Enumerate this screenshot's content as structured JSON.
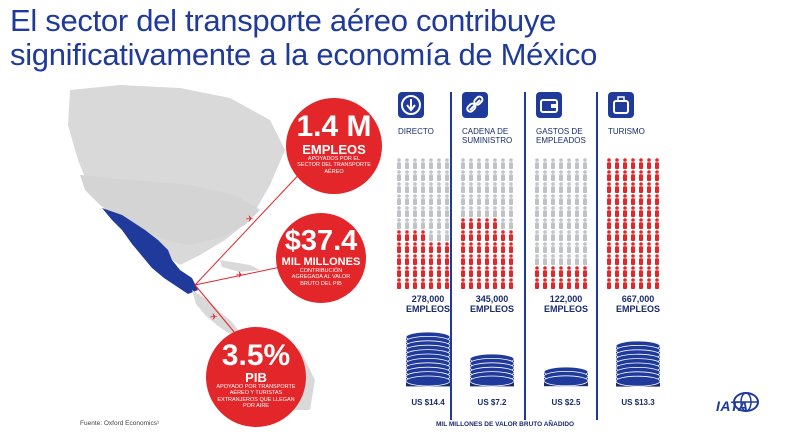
{
  "title_line1": "El sector del transporte aéreo contribuye",
  "title_line2": "significativamente a la economía de México",
  "circles": [
    {
      "big": "1.4 M",
      "mid": "EMPLEOS",
      "small": "APOYADOS POR EL SECTOR DEL TRANSPORTE AÉREO"
    },
    {
      "big": "$37.4",
      "mid": "MIL MILLONES",
      "small": "CONTRIBUCIÓN AGREGADA AL VALOR BRUTO DEL PIB"
    },
    {
      "big": "3.5%",
      "mid": "PIB",
      "small": "APOYADO POR TRANSPORTE AÉREO Y TURISTAS EXTRANJEROS QUE LLEGAN POR AIRE"
    }
  ],
  "columns": [
    {
      "icon": "arrow-down-icon",
      "label": "DIRECTO",
      "count": "278,000",
      "unit": "EMPLEOS",
      "gva": "US $14.4",
      "red_fraction": 0.42,
      "coins": 11
    },
    {
      "icon": "link-icon",
      "label": "CADENA DE SUMINISTRO",
      "count": "345,000",
      "unit": "EMPLEOS",
      "gva": "US $7.2",
      "red_fraction": 0.52,
      "coins": 6
    },
    {
      "icon": "wallet-icon",
      "label": "GASTOS DE EMPLEADOS",
      "count": "122,000",
      "unit": "EMPLEOS",
      "gva": "US $2.5",
      "red_fraction": 0.18,
      "coins": 3
    },
    {
      "icon": "suitcase-icon",
      "label": "TURISMO",
      "count": "667,000",
      "unit": "EMPLEOS",
      "gva": "US $13.3",
      "red_fraction": 1.0,
      "coins": 9
    }
  ],
  "footer_source": "Fuente: Oxford Economics¹",
  "footer_gva": "MIL MILLONES DE VALOR BRUTO AÑADIDO",
  "logo_text": "IATA",
  "colors": {
    "blue": "#1f3a9b",
    "red": "#e3262a",
    "grey": "#bfc2c7",
    "map_grey": "#d9d9d9"
  }
}
